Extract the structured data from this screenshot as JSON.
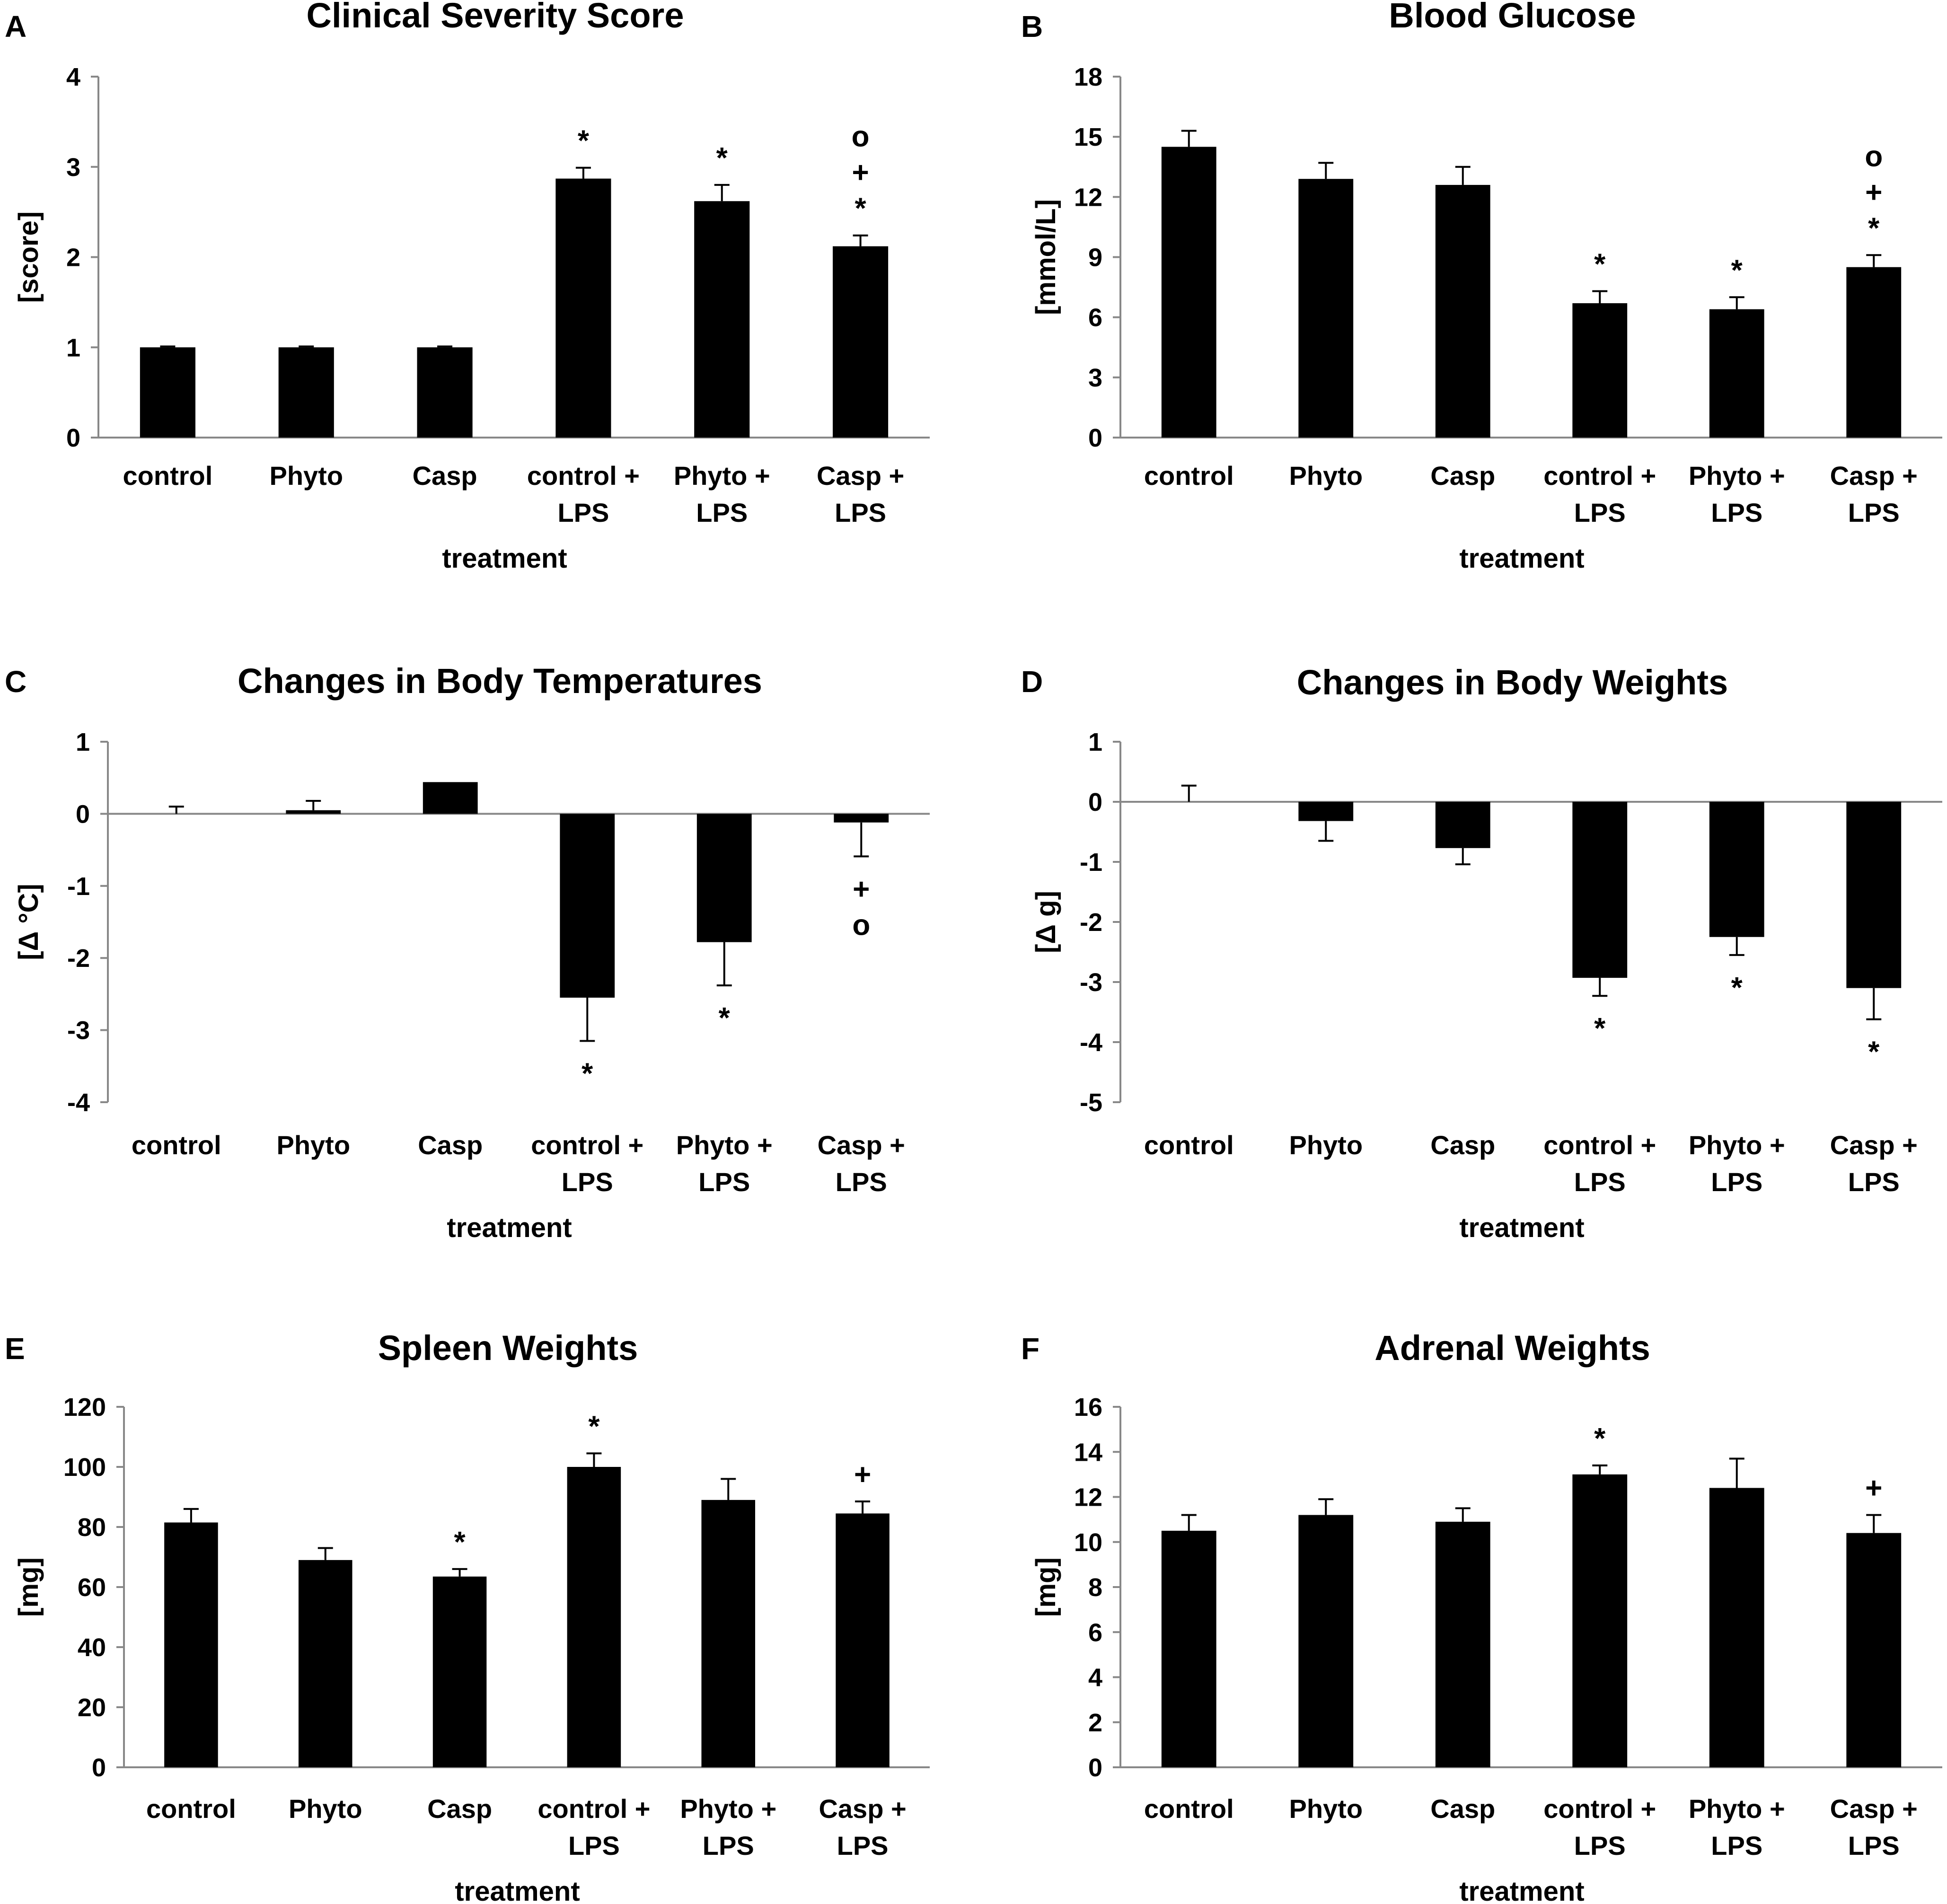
{
  "chart_data": [
    {
      "panel": "A",
      "type": "bar",
      "title": "Clinical Severity Score",
      "xlabel": "treatment",
      "ylabel": "[score]",
      "ylim": [
        0,
        4
      ],
      "yticks": [
        0,
        1,
        2,
        3,
        4
      ],
      "categories": [
        [
          "control"
        ],
        [
          "Phyto"
        ],
        [
          "Casp"
        ],
        [
          "control +",
          "LPS"
        ],
        [
          "Phyto +",
          "LPS"
        ],
        [
          "Casp +",
          "LPS"
        ]
      ],
      "values": [
        1.0,
        1.0,
        1.0,
        2.87,
        2.62,
        2.12
      ],
      "errors": [
        0.01,
        0.01,
        0.01,
        0.12,
        0.18,
        0.12
      ],
      "markers": [
        [],
        [],
        [],
        [
          "*"
        ],
        [
          "*"
        ],
        [
          "*",
          "+",
          "o"
        ]
      ],
      "baseline_zero": false
    },
    {
      "panel": "B",
      "type": "bar",
      "title": "Blood Glucose",
      "xlabel": "treatment",
      "ylabel": "[mmol/L]",
      "ylim": [
        0,
        18
      ],
      "yticks": [
        0,
        3,
        6,
        9,
        12,
        15,
        18
      ],
      "categories": [
        [
          "control"
        ],
        [
          "Phyto"
        ],
        [
          "Casp"
        ],
        [
          "control +",
          "LPS"
        ],
        [
          "Phyto +",
          "LPS"
        ],
        [
          "Casp +",
          "LPS"
        ]
      ],
      "values": [
        14.5,
        12.9,
        12.6,
        6.7,
        6.4,
        8.5
      ],
      "errors": [
        0.8,
        0.8,
        0.9,
        0.6,
        0.6,
        0.6
      ],
      "markers": [
        [],
        [],
        [],
        [
          "*"
        ],
        [
          "*"
        ],
        [
          "*",
          "+",
          "o"
        ]
      ],
      "baseline_zero": false
    },
    {
      "panel": "C",
      "type": "bar",
      "title": "Changes in Body Temperatures",
      "xlabel": "treatment",
      "ylabel": "[Δ °C]",
      "ylim": [
        -4,
        1
      ],
      "yticks": [
        -4,
        -3,
        -2,
        -1,
        0,
        1
      ],
      "categories": [
        [
          "control"
        ],
        [
          "Phyto"
        ],
        [
          "Casp"
        ],
        [
          "control +",
          "LPS"
        ],
        [
          "Phyto +",
          "LPS"
        ],
        [
          "Casp +",
          "LPS"
        ]
      ],
      "values": [
        0.0,
        0.05,
        0.44,
        -2.55,
        -1.78,
        -0.12
      ],
      "errors": [
        0.1,
        0.13,
        0.0,
        0.6,
        0.6,
        0.47
      ],
      "markers": [
        [],
        [],
        [],
        [
          "*"
        ],
        [
          "*"
        ],
        [
          "+",
          "o"
        ]
      ],
      "baseline_zero": true
    },
    {
      "panel": "D",
      "type": "bar",
      "title": "Changes in Body Weights",
      "xlabel": "treatment",
      "ylabel": "[Δ g]",
      "ylim": [
        -5,
        1
      ],
      "yticks": [
        -5,
        -4,
        -3,
        -2,
        -1,
        0,
        1
      ],
      "categories": [
        [
          "control"
        ],
        [
          "Phyto"
        ],
        [
          "Casp"
        ],
        [
          "control +",
          "LPS"
        ],
        [
          "Phyto +",
          "LPS"
        ],
        [
          "Casp +",
          "LPS"
        ]
      ],
      "values": [
        0.0,
        -0.32,
        -0.77,
        -2.93,
        -2.25,
        -3.1
      ],
      "errors": [
        0.27,
        0.33,
        0.27,
        0.3,
        0.3,
        0.52
      ],
      "markers": [
        [],
        [],
        [],
        [
          "*"
        ],
        [
          "*"
        ],
        [
          "*"
        ]
      ],
      "baseline_zero": true
    },
    {
      "panel": "E",
      "type": "bar",
      "title": "Spleen Weights",
      "xlabel": "treatment",
      "ylabel": "[mg]",
      "ylim": [
        0,
        120
      ],
      "yticks": [
        0,
        20,
        40,
        60,
        80,
        100,
        120
      ],
      "categories": [
        [
          "control"
        ],
        [
          "Phyto"
        ],
        [
          "Casp"
        ],
        [
          "control +",
          "LPS"
        ],
        [
          "Phyto +",
          "LPS"
        ],
        [
          "Casp +",
          "LPS"
        ]
      ],
      "values": [
        81.5,
        69,
        63.5,
        100,
        89,
        84.5
      ],
      "errors": [
        4.5,
        4.0,
        2.5,
        4.5,
        7.0,
        4.0
      ],
      "markers": [
        [],
        [],
        [
          "*"
        ],
        [
          "*"
        ],
        [],
        [
          "+"
        ]
      ],
      "baseline_zero": false
    },
    {
      "panel": "F",
      "type": "bar",
      "title": "Adrenal Weights",
      "xlabel": "treatment",
      "ylabel": "[mg]",
      "ylim": [
        0,
        16
      ],
      "yticks": [
        0,
        2,
        4,
        6,
        8,
        10,
        12,
        14,
        16
      ],
      "categories": [
        [
          "control"
        ],
        [
          "Phyto"
        ],
        [
          "Casp"
        ],
        [
          "control +",
          "LPS"
        ],
        [
          "Phyto +",
          "LPS"
        ],
        [
          "Casp +",
          "LPS"
        ]
      ],
      "values": [
        10.5,
        11.2,
        10.9,
        13.0,
        12.4,
        10.4
      ],
      "errors": [
        0.7,
        0.7,
        0.6,
        0.4,
        1.3,
        0.8
      ],
      "markers": [
        [],
        [],
        [],
        [
          "*"
        ],
        [],
        [
          "+"
        ]
      ],
      "baseline_zero": false
    }
  ]
}
